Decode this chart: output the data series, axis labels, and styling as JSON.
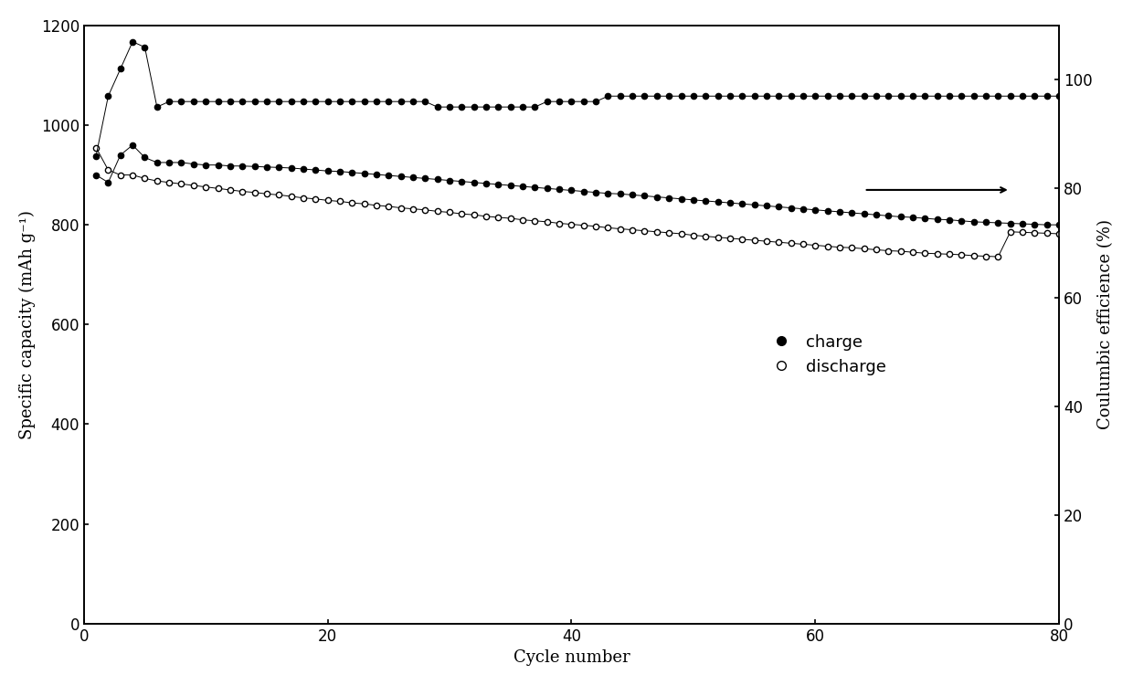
{
  "xlabel": "Cycle number",
  "ylabel_left": "Specific capacity (mAh g⁻¹)",
  "ylabel_right": "Coulumbic efficience (%)",
  "xlim": [
    0,
    80
  ],
  "ylim_left": [
    0,
    1200
  ],
  "ylim_right": [
    0,
    110
  ],
  "yticks_left": [
    0,
    200,
    400,
    600,
    800,
    1000,
    1200
  ],
  "yticks_right": [
    0,
    20,
    40,
    60,
    80,
    100
  ],
  "xticks": [
    0,
    20,
    40,
    60,
    80
  ],
  "background_color": "#ffffff",
  "charge_data_x": [
    1,
    2,
    3,
    4,
    5,
    6,
    7,
    8,
    9,
    10,
    11,
    12,
    13,
    14,
    15,
    16,
    17,
    18,
    19,
    20,
    21,
    22,
    23,
    24,
    25,
    26,
    27,
    28,
    29,
    30,
    31,
    32,
    33,
    34,
    35,
    36,
    37,
    38,
    39,
    40,
    41,
    42,
    43,
    44,
    45,
    46,
    47,
    48,
    49,
    50,
    51,
    52,
    53,
    54,
    55,
    56,
    57,
    58,
    59,
    60,
    61,
    62,
    63,
    64,
    65,
    66,
    67,
    68,
    69,
    70,
    71,
    72,
    73,
    74,
    75,
    76,
    77,
    78,
    79,
    80
  ],
  "charge_data_y": [
    900,
    885,
    940,
    960,
    935,
    925,
    925,
    925,
    922,
    920,
    920,
    918,
    918,
    917,
    916,
    915,
    914,
    912,
    910,
    908,
    907,
    905,
    903,
    901,
    899,
    897,
    895,
    893,
    891,
    889,
    887,
    885,
    883,
    881,
    879,
    877,
    875,
    873,
    871,
    869,
    867,
    865,
    863,
    862,
    860,
    858,
    856,
    854,
    852,
    850,
    848,
    846,
    844,
    842,
    840,
    838,
    836,
    834,
    832,
    830,
    828,
    826,
    824,
    822,
    820,
    818,
    816,
    815,
    813,
    811,
    810,
    808,
    806,
    805,
    804,
    803,
    802,
    801,
    800,
    800
  ],
  "discharge_data_x": [
    1,
    2,
    3,
    4,
    5,
    6,
    7,
    8,
    9,
    10,
    11,
    12,
    13,
    14,
    15,
    16,
    17,
    18,
    19,
    20,
    21,
    22,
    23,
    24,
    25,
    26,
    27,
    28,
    29,
    30,
    31,
    32,
    33,
    34,
    35,
    36,
    37,
    38,
    39,
    40,
    41,
    42,
    43,
    44,
    45,
    46,
    47,
    48,
    49,
    50,
    51,
    52,
    53,
    54,
    55,
    56,
    57,
    58,
    59,
    60,
    61,
    62,
    63,
    64,
    65,
    66,
    67,
    68,
    69,
    70,
    71,
    72,
    73,
    74,
    75,
    76,
    77,
    78,
    79,
    80
  ],
  "discharge_data_y": [
    955,
    910,
    900,
    900,
    893,
    888,
    885,
    882,
    879,
    876,
    873,
    870,
    867,
    865,
    862,
    860,
    857,
    854,
    852,
    849,
    847,
    844,
    842,
    839,
    837,
    834,
    832,
    830,
    827,
    825,
    822,
    820,
    817,
    815,
    813,
    810,
    808,
    806,
    803,
    801,
    799,
    797,
    794,
    792,
    790,
    788,
    786,
    784,
    782,
    779,
    777,
    775,
    773,
    771,
    769,
    767,
    765,
    763,
    761,
    759,
    757,
    755,
    754,
    752,
    750,
    748,
    747,
    745,
    743,
    742,
    741,
    740,
    738,
    737,
    736,
    786,
    785,
    784,
    783,
    782
  ],
  "efficiency_data_x": [
    1,
    2,
    3,
    4,
    5,
    6,
    7,
    8,
    9,
    10,
    11,
    12,
    13,
    14,
    15,
    16,
    17,
    18,
    19,
    20,
    21,
    22,
    23,
    24,
    25,
    26,
    27,
    28,
    29,
    30,
    31,
    32,
    33,
    34,
    35,
    36,
    37,
    38,
    39,
    40,
    41,
    42,
    43,
    44,
    45,
    46,
    47,
    48,
    49,
    50,
    51,
    52,
    53,
    54,
    55,
    56,
    57,
    58,
    59,
    60,
    61,
    62,
    63,
    64,
    65,
    66,
    67,
    68,
    69,
    70,
    71,
    72,
    73,
    74,
    75,
    76,
    77,
    78,
    79,
    80
  ],
  "efficiency_data_y": [
    86,
    97,
    102,
    107,
    106,
    95,
    96,
    96,
    96,
    96,
    96,
    96,
    96,
    96,
    96,
    96,
    96,
    96,
    96,
    96,
    96,
    96,
    96,
    96,
    96,
    96,
    96,
    96,
    95,
    95,
    95,
    95,
    95,
    95,
    95,
    95,
    95,
    96,
    96,
    96,
    96,
    96,
    97,
    97,
    97,
    97,
    97,
    97,
    97,
    97,
    97,
    97,
    97,
    97,
    97,
    97,
    97,
    97,
    97,
    97,
    97,
    97,
    97,
    97,
    97,
    97,
    97,
    97,
    97,
    97,
    97,
    97,
    97,
    97,
    97,
    97,
    97,
    97,
    97,
    97
  ],
  "axis_fontsize": 13,
  "tick_fontsize": 12,
  "legend_fontsize": 13
}
